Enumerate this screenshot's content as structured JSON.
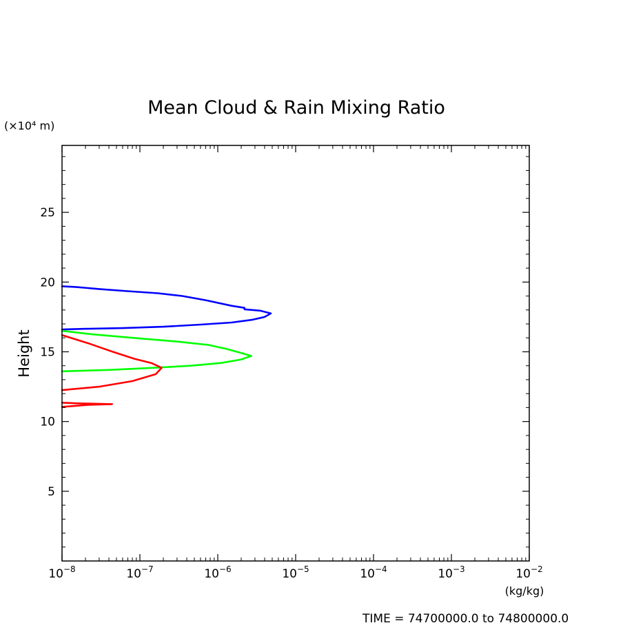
{
  "chart_data": {
    "type": "line",
    "title": "Mean Cloud & Rain Mixing Ratio",
    "xlabel": "(kg/kg)",
    "ylabel": "Height",
    "y_unit_label": "(×10⁴ m)",
    "footer": "TIME = 74700000.0 to 74800000.0",
    "x_scale": "log",
    "xlim": [
      1e-08,
      0.01
    ],
    "ylim": [
      0,
      29.8
    ],
    "x_tick_labels": [
      {
        "value": 1e-08,
        "base": "10",
        "exp": "−8"
      },
      {
        "value": 1e-07,
        "base": "10",
        "exp": "−7"
      },
      {
        "value": 1e-06,
        "base": "10",
        "exp": "−6"
      },
      {
        "value": 1e-05,
        "base": "10",
        "exp": "−5"
      },
      {
        "value": 0.0001,
        "base": "10",
        "exp": "−4"
      },
      {
        "value": 0.001,
        "base": "10",
        "exp": "−3"
      },
      {
        "value": 0.01,
        "base": "10",
        "exp": "−2"
      }
    ],
    "y_ticks": [
      5,
      10,
      15,
      20,
      25
    ],
    "y_tick_labels": [
      "5",
      "10",
      "15",
      "20",
      "25"
    ],
    "grid": false,
    "series": [
      {
        "color": "#0000ff",
        "points": [
          [
            1e-08,
            19.7
          ],
          [
            1.5e-08,
            19.65
          ],
          [
            3e-08,
            19.5
          ],
          [
            7e-08,
            19.35
          ],
          [
            1.7e-07,
            19.2
          ],
          [
            3.5e-07,
            19.0
          ],
          [
            7e-07,
            18.7
          ],
          [
            1.5e-06,
            18.3
          ],
          [
            2.2e-06,
            18.15
          ],
          [
            2.2e-06,
            18.05
          ],
          [
            3.5e-06,
            17.95
          ],
          [
            4.8e-06,
            17.75
          ],
          [
            4e-06,
            17.5
          ],
          [
            2.8e-06,
            17.3
          ],
          [
            1.5e-06,
            17.1
          ],
          [
            6e-07,
            16.95
          ],
          [
            2e-07,
            16.8
          ],
          [
            6e-08,
            16.7
          ],
          [
            2e-08,
            16.65
          ],
          [
            1e-08,
            16.6
          ]
        ]
      },
      {
        "color": "#00ff00",
        "points": [
          [
            1e-08,
            16.5
          ],
          [
            2.5e-08,
            16.25
          ],
          [
            8e-08,
            16.0
          ],
          [
            2.8e-07,
            15.75
          ],
          [
            7.5e-07,
            15.5
          ],
          [
            1.3e-06,
            15.2
          ],
          [
            1.9e-06,
            14.95
          ],
          [
            2.7e-06,
            14.7
          ],
          [
            2e-06,
            14.45
          ],
          [
            1.1e-06,
            14.2
          ],
          [
            4.5e-07,
            14.0
          ],
          [
            1.5e-07,
            13.85
          ],
          [
            4e-08,
            13.7
          ],
          [
            1e-08,
            13.6
          ]
        ]
      },
      {
        "color": "#ff0000",
        "points": [
          [
            1e-08,
            16.2
          ],
          [
            2.2e-08,
            15.6
          ],
          [
            4.5e-08,
            15.0
          ],
          [
            8.5e-08,
            14.5
          ],
          [
            1.4e-07,
            14.2
          ],
          [
            1.9e-07,
            13.85
          ],
          [
            1.6e-07,
            13.4
          ],
          [
            8e-08,
            12.9
          ],
          [
            3e-08,
            12.5
          ],
          [
            1e-08,
            12.25
          ]
        ]
      },
      {
        "color": "#ff0000",
        "points": [
          [
            1e-08,
            11.35
          ],
          [
            1.6e-08,
            11.3
          ],
          [
            4.4e-08,
            11.25
          ],
          [
            2.2e-08,
            11.2
          ],
          [
            1.3e-08,
            11.1
          ],
          [
            1e-08,
            11.05
          ]
        ]
      }
    ]
  }
}
